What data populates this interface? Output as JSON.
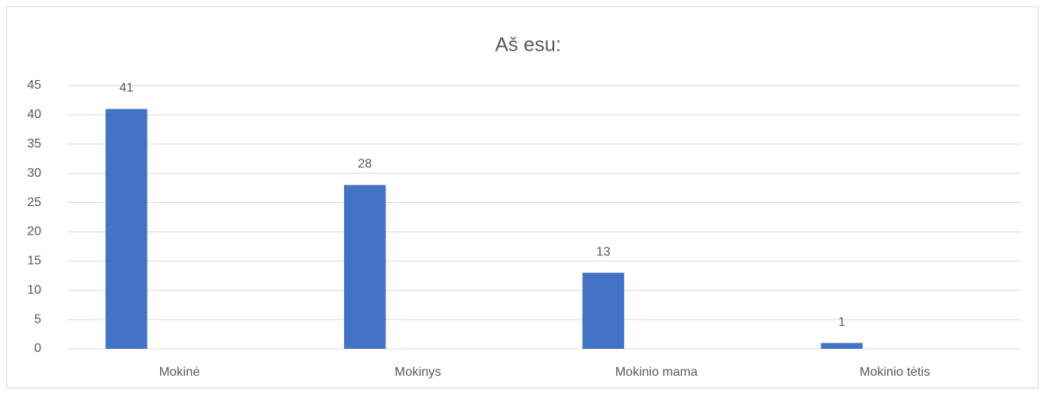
{
  "chart_data": {
    "type": "bar",
    "title": "Aš esu:",
    "categories": [
      "Mokinė",
      "Mokinys",
      "Mokinio mama",
      "Mokinio tėtis"
    ],
    "values": [
      41,
      28,
      13,
      1
    ],
    "color": "#4472c4",
    "ylim": [
      0,
      45
    ],
    "yticks": [
      0,
      5,
      10,
      15,
      20,
      25,
      30,
      35,
      40,
      45
    ],
    "grid": true
  }
}
